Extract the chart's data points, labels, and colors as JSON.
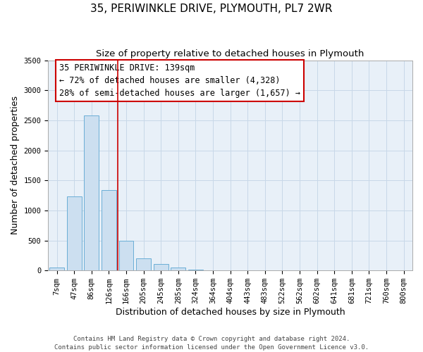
{
  "title": "35, PERIWINKLE DRIVE, PLYMOUTH, PL7 2WR",
  "subtitle": "Size of property relative to detached houses in Plymouth",
  "xlabel": "Distribution of detached houses by size in Plymouth",
  "ylabel": "Number of detached properties",
  "bar_labels": [
    "7sqm",
    "47sqm",
    "86sqm",
    "126sqm",
    "166sqm",
    "205sqm",
    "245sqm",
    "285sqm",
    "324sqm",
    "364sqm",
    "404sqm",
    "443sqm",
    "483sqm",
    "522sqm",
    "562sqm",
    "602sqm",
    "641sqm",
    "681sqm",
    "721sqm",
    "760sqm",
    "800sqm"
  ],
  "bar_values": [
    50,
    1230,
    2580,
    1340,
    500,
    200,
    110,
    45,
    10,
    5,
    3,
    2,
    1,
    0,
    0,
    0,
    0,
    0,
    0,
    0,
    0
  ],
  "bar_color": "#ccdff0",
  "bar_edge_color": "#6aaed6",
  "marker_label": "35 PERIWINKLE DRIVE: 139sqm",
  "annotation_line1": "← 72% of detached houses are smaller (4,328)",
  "annotation_line2": "28% of semi-detached houses are larger (1,657) →",
  "annotation_box_color": "#ffffff",
  "annotation_box_edge": "#cc0000",
  "marker_line_color": "#cc0000",
  "ylim": [
    0,
    3500
  ],
  "yticks": [
    0,
    500,
    1000,
    1500,
    2000,
    2500,
    3000,
    3500
  ],
  "footer1": "Contains HM Land Registry data © Crown copyright and database right 2024.",
  "footer2": "Contains public sector information licensed under the Open Government Licence v3.0.",
  "bg_color": "#ffffff",
  "plot_bg_color": "#e8f0f8",
  "grid_color": "#c8d8e8",
  "title_fontsize": 11,
  "subtitle_fontsize": 9.5,
  "axis_label_fontsize": 9,
  "tick_fontsize": 7.5,
  "annotation_fontsize": 8.5,
  "footer_fontsize": 6.5
}
